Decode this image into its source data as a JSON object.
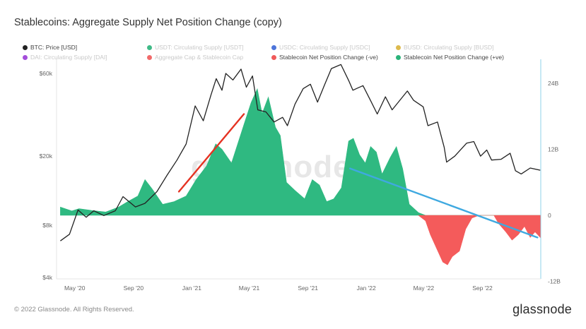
{
  "title": "Stablecoins: Aggregate Supply Net Position Change (copy)",
  "legend": [
    {
      "label": "BTC: Price [USD]",
      "color": "#222222",
      "active": true
    },
    {
      "label": "USDT: Circulating Supply [USDT]",
      "color": "#2bb37a",
      "active": false
    },
    {
      "label": "USDC: Circulating Supply [USDC]",
      "color": "#3a66d6",
      "active": false
    },
    {
      "label": "BUSD: Circulating Supply [BUSD]",
      "color": "#d9b23a",
      "active": false
    },
    {
      "label": "DAI: Circulating Supply [DAI]",
      "color": "#9a3ad6",
      "active": false
    },
    {
      "label": "Aggregate Cap & Stablecoin Cap",
      "color": "#f05a5a",
      "active": false
    },
    {
      "label": "Stablecoin Net Position Change (-ve)",
      "color": "#f05a5a",
      "active": true
    },
    {
      "label": "Stablecoin Net Position Change (+ve)",
      "color": "#2bb37a",
      "active": true
    }
  ],
  "watermark": "glassnode",
  "footer": {
    "copyright": "© 2022 Glassnode. All Rights Reserved.",
    "logo": "glassnode"
  },
  "colors": {
    "positive": "#2fb981",
    "negative": "#f45b5b",
    "price": "#222222",
    "trend_up": "#e53222",
    "trend_down": "#3fa9e0",
    "right_axis": "#8fd0e8"
  },
  "chart_data": {
    "type": "line",
    "title": "Stablecoins: Aggregate Supply Net Position Change (copy)",
    "x_ticks": [
      "May '20",
      "Sep '20",
      "Jan '21",
      "May '21",
      "Sep '21",
      "Jan '22",
      "May '22",
      "Sep '22"
    ],
    "x_range": [
      "2020-04-01",
      "2022-12-31"
    ],
    "y_left": {
      "scale": "log",
      "ticks": [
        "$4k",
        "$8k",
        "$20k",
        "$60k"
      ],
      "tick_values": [
        4000,
        8000,
        20000,
        60000
      ],
      "range": [
        4000,
        70000
      ]
    },
    "y_right": {
      "ticks": [
        "24B",
        "12B",
        "0",
        "-12B"
      ],
      "tick_values": [
        24,
        12,
        0,
        -12
      ],
      "range": [
        -12.5,
        29
      ]
    },
    "series": [
      {
        "name": "BTC: Price [USD]",
        "axis": "left",
        "points": [
          [
            "2020-04-01",
            6500
          ],
          [
            "2020-04-20",
            7100
          ],
          [
            "2020-05-08",
            9800
          ],
          [
            "2020-05-25",
            8900
          ],
          [
            "2020-06-10",
            9700
          ],
          [
            "2020-07-01",
            9100
          ],
          [
            "2020-07-25",
            9700
          ],
          [
            "2020-08-10",
            11700
          ],
          [
            "2020-09-05",
            10200
          ],
          [
            "2020-09-25",
            10700
          ],
          [
            "2020-10-20",
            12500
          ],
          [
            "2020-11-10",
            15500
          ],
          [
            "2020-12-01",
            19000
          ],
          [
            "2020-12-20",
            23500
          ],
          [
            "2021-01-08",
            39000
          ],
          [
            "2021-01-25",
            32000
          ],
          [
            "2021-02-10",
            45000
          ],
          [
            "2021-02-21",
            56000
          ],
          [
            "2021-03-05",
            48000
          ],
          [
            "2021-03-13",
            60000
          ],
          [
            "2021-03-28",
            55000
          ],
          [
            "2021-04-14",
            63500
          ],
          [
            "2021-04-25",
            50000
          ],
          [
            "2021-05-08",
            58000
          ],
          [
            "2021-05-19",
            37000
          ],
          [
            "2021-06-05",
            36000
          ],
          [
            "2021-06-22",
            31500
          ],
          [
            "2021-07-10",
            33500
          ],
          [
            "2021-07-20",
            30000
          ],
          [
            "2021-08-05",
            40000
          ],
          [
            "2021-08-22",
            49000
          ],
          [
            "2021-09-06",
            52000
          ],
          [
            "2021-09-21",
            41000
          ],
          [
            "2021-10-05",
            51000
          ],
          [
            "2021-10-20",
            64000
          ],
          [
            "2021-11-09",
            67500
          ],
          [
            "2021-11-26",
            54000
          ],
          [
            "2021-12-04",
            48000
          ],
          [
            "2021-12-25",
            51000
          ],
          [
            "2022-01-10",
            41800
          ],
          [
            "2022-01-24",
            35000
          ],
          [
            "2022-02-10",
            44000
          ],
          [
            "2022-02-24",
            37000
          ],
          [
            "2022-03-28",
            47500
          ],
          [
            "2022-04-10",
            42000
          ],
          [
            "2022-04-30",
            38500
          ],
          [
            "2022-05-10",
            30000
          ],
          [
            "2022-05-30",
            31500
          ],
          [
            "2022-06-13",
            22500
          ],
          [
            "2022-06-18",
            18500
          ],
          [
            "2022-07-05",
            20000
          ],
          [
            "2022-07-30",
            23800
          ],
          [
            "2022-08-14",
            24300
          ],
          [
            "2022-08-28",
            20000
          ],
          [
            "2022-09-10",
            21700
          ],
          [
            "2022-09-20",
            19000
          ],
          [
            "2022-10-10",
            19200
          ],
          [
            "2022-10-29",
            20800
          ],
          [
            "2022-11-09",
            16500
          ],
          [
            "2022-11-21",
            15800
          ],
          [
            "2022-12-10",
            17100
          ],
          [
            "2022-12-31",
            16600
          ]
        ]
      },
      {
        "name": "Stablecoin Net Position Change (+ve)",
        "axis": "right",
        "points": [
          [
            "2020-04-01",
            1.5
          ],
          [
            "2020-04-25",
            0.8
          ],
          [
            "2020-05-10",
            1.2
          ],
          [
            "2020-06-05",
            0.9
          ],
          [
            "2020-07-05",
            0.6
          ],
          [
            "2020-08-01",
            1.5
          ],
          [
            "2020-08-20",
            2.5
          ],
          [
            "2020-09-10",
            3.5
          ],
          [
            "2020-09-25",
            6.5
          ],
          [
            "2020-10-10",
            4.8
          ],
          [
            "2020-11-01",
            2.0
          ],
          [
            "2020-11-25",
            2.5
          ],
          [
            "2020-12-20",
            3.5
          ],
          [
            "2021-01-10",
            6.5
          ],
          [
            "2021-02-01",
            9.0
          ],
          [
            "2021-02-20",
            13.0
          ],
          [
            "2021-03-05",
            12.0
          ],
          [
            "2021-03-25",
            9.5
          ],
          [
            "2021-04-20",
            16.5
          ],
          [
            "2021-05-05",
            20.5
          ],
          [
            "2021-05-18",
            23.0
          ],
          [
            "2021-05-28",
            18.5
          ],
          [
            "2021-06-10",
            21.5
          ],
          [
            "2021-06-25",
            16.0
          ],
          [
            "2021-07-05",
            14.5
          ],
          [
            "2021-07-18",
            6.0
          ],
          [
            "2021-08-05",
            4.5
          ],
          [
            "2021-08-25",
            3.0
          ],
          [
            "2021-09-10",
            6.5
          ],
          [
            "2021-09-25",
            5.5
          ],
          [
            "2021-10-10",
            2.5
          ],
          [
            "2021-10-25",
            3.0
          ],
          [
            "2021-11-10",
            5.0
          ],
          [
            "2021-11-25",
            13.5
          ],
          [
            "2021-12-05",
            14.0
          ],
          [
            "2021-12-18",
            11.0
          ],
          [
            "2021-12-30",
            9.5
          ],
          [
            "2022-01-10",
            12.5
          ],
          [
            "2022-01-22",
            11.5
          ],
          [
            "2022-02-03",
            7.5
          ],
          [
            "2022-02-20",
            10.5
          ],
          [
            "2022-03-05",
            12.5
          ],
          [
            "2022-03-18",
            8.5
          ],
          [
            "2022-04-01",
            2.0
          ],
          [
            "2022-04-20",
            0.5
          ],
          [
            "2022-05-05",
            0
          ],
          [
            "2022-12-31",
            0
          ]
        ]
      },
      {
        "name": "Stablecoin Net Position Change (-ve)",
        "axis": "right",
        "points": [
          [
            "2022-04-20",
            0
          ],
          [
            "2022-05-05",
            -1.0
          ],
          [
            "2022-05-15",
            -3.5
          ],
          [
            "2022-05-28",
            -6.0
          ],
          [
            "2022-06-10",
            -8.5
          ],
          [
            "2022-06-20",
            -9.0
          ],
          [
            "2022-06-30",
            -7.5
          ],
          [
            "2022-07-15",
            -6.5
          ],
          [
            "2022-07-28",
            -2.5
          ],
          [
            "2022-08-10",
            -0.5
          ],
          [
            "2022-08-25",
            0
          ],
          [
            "2022-09-25",
            0
          ],
          [
            "2022-10-05",
            -1.5
          ],
          [
            "2022-10-20",
            -3.0
          ],
          [
            "2022-11-02",
            -4.5
          ],
          [
            "2022-11-15",
            -3.5
          ],
          [
            "2022-11-28",
            -2.0
          ],
          [
            "2022-12-10",
            -4.0
          ],
          [
            "2022-12-20",
            -3.0
          ],
          [
            "2022-12-31",
            -4.0
          ]
        ]
      }
    ],
    "annotations": [
      {
        "type": "trend-line",
        "color": "#e53222",
        "points": [
          [
            "2020-12-05",
            12500
          ],
          [
            "2021-04-20",
            35000
          ]
        ],
        "axis": "left"
      },
      {
        "type": "trend-line",
        "color": "#3fa9e0",
        "points": [
          [
            "2021-11-28",
            17000
          ],
          [
            "2022-12-25",
            6800
          ]
        ],
        "axis": "left"
      }
    ],
    "grid": false,
    "legend": "top-left"
  }
}
